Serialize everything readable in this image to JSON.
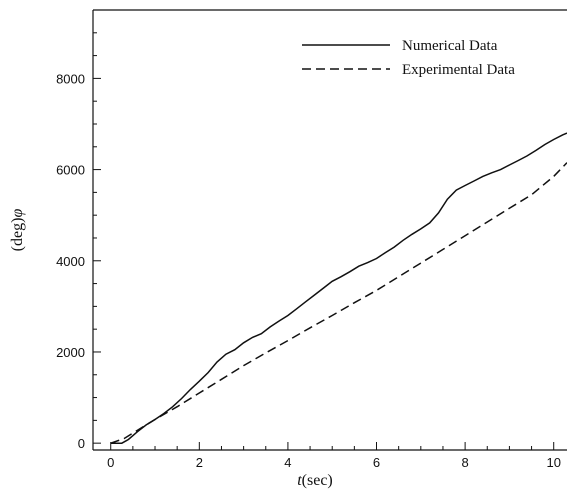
{
  "chart_data": {
    "type": "line",
    "title": "",
    "xlabel_italic": "t",
    "xlabel_rest": "(sec)",
    "ylabel_rest": "(deg)",
    "ylabel_italic": "φ",
    "xlim": [
      -0.4,
      10.3
    ],
    "ylim": [
      -150,
      9500
    ],
    "xticks": [
      0,
      2,
      4,
      6,
      8,
      10
    ],
    "yticks": [
      0,
      2000,
      4000,
      6000,
      8000
    ],
    "grid": false,
    "legend_position": "top-right",
    "series": [
      {
        "name": "Numerical Data",
        "style": "solid",
        "x": [
          0,
          0.25,
          0.4,
          0.6,
          0.8,
          1.0,
          1.2,
          1.4,
          1.6,
          1.8,
          2.0,
          2.2,
          2.4,
          2.6,
          2.8,
          3.0,
          3.2,
          3.4,
          3.6,
          3.8,
          4.0,
          4.2,
          4.4,
          4.6,
          4.8,
          5.0,
          5.2,
          5.4,
          5.6,
          5.8,
          6.0,
          6.2,
          6.4,
          6.6,
          6.8,
          7.0,
          7.2,
          7.4,
          7.6,
          7.8,
          8.0,
          8.2,
          8.4,
          8.6,
          8.8,
          9.0,
          9.2,
          9.4,
          9.6,
          9.8,
          10.0,
          10.2,
          10.3
        ],
        "y": [
          0,
          0,
          80,
          250,
          400,
          520,
          650,
          800,
          980,
          1180,
          1360,
          1550,
          1780,
          1950,
          2050,
          2200,
          2320,
          2400,
          2550,
          2680,
          2800,
          2950,
          3100,
          3250,
          3400,
          3550,
          3650,
          3760,
          3880,
          3960,
          4050,
          4180,
          4300,
          4450,
          4580,
          4700,
          4830,
          5050,
          5350,
          5550,
          5650,
          5750,
          5850,
          5930,
          6000,
          6100,
          6200,
          6300,
          6420,
          6550,
          6660,
          6760,
          6800
        ]
      },
      {
        "name": "Experimental Data",
        "style": "dashed",
        "x": [
          0,
          0.3,
          0.6,
          1.0,
          1.5,
          2.0,
          2.5,
          3.0,
          3.5,
          4.0,
          4.5,
          5.0,
          5.5,
          6.0,
          6.5,
          7.0,
          7.5,
          8.0,
          8.5,
          9.0,
          9.5,
          10.0,
          10.3
        ],
        "y": [
          0,
          100,
          280,
          520,
          800,
          1100,
          1400,
          1700,
          1980,
          2250,
          2530,
          2800,
          3080,
          3350,
          3650,
          3950,
          4250,
          4550,
          4850,
          5150,
          5450,
          5850,
          6150
        ]
      }
    ]
  }
}
